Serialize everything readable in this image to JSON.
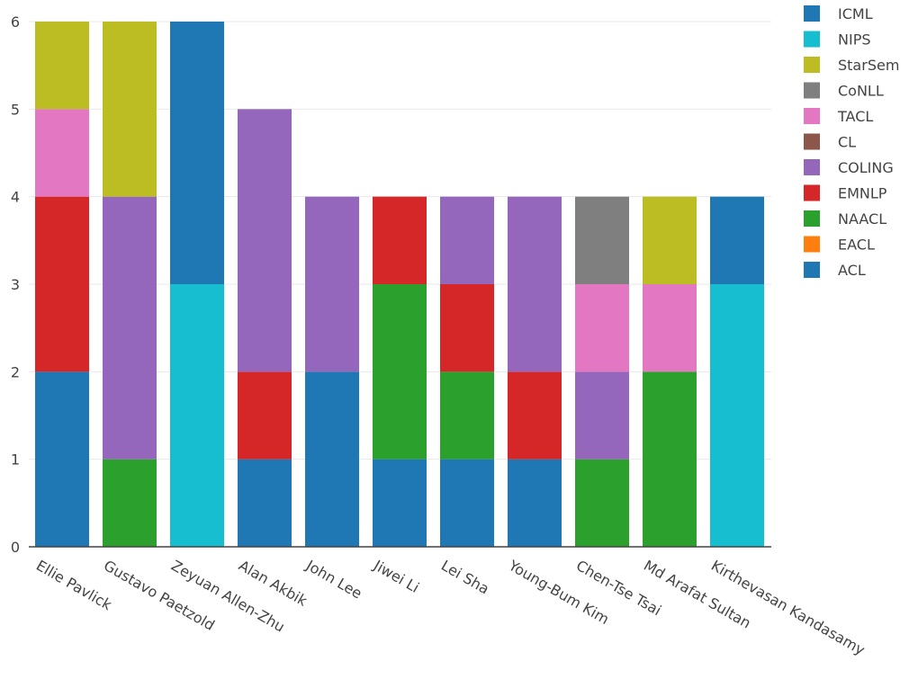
{
  "chart_data": {
    "type": "bar",
    "stacked": true,
    "title": "",
    "xlabel": "",
    "ylabel": "",
    "ylim": [
      0,
      6
    ],
    "yticks": [
      "0",
      "1",
      "2",
      "3",
      "4",
      "5",
      "6"
    ],
    "grid": true,
    "legend_position": "right",
    "categories": [
      "Ellie Pavlick",
      "Gustavo Paetzold",
      "Zeyuan Allen-Zhu",
      "Alan Akbik",
      "John Lee",
      "Jiwei Li",
      "Lei Sha",
      "Young-Bum Kim",
      "Chen-Tse Tsai",
      "Md Arafat Sultan",
      "Kirthevasan Kandasamy"
    ],
    "series": [
      {
        "name": "ACL",
        "color": "#1f77b4",
        "values": [
          2,
          0,
          0,
          1,
          2,
          1,
          1,
          1,
          0,
          0,
          0
        ]
      },
      {
        "name": "EACL",
        "color": "#ff7f0e",
        "values": [
          0,
          0,
          0,
          0,
          0,
          0,
          0,
          0,
          0,
          0,
          0
        ]
      },
      {
        "name": "NAACL",
        "color": "#2ca02c",
        "values": [
          0,
          1,
          0,
          0,
          0,
          2,
          1,
          0,
          1,
          2,
          0
        ]
      },
      {
        "name": "EMNLP",
        "color": "#d62728",
        "values": [
          2,
          0,
          0,
          1,
          0,
          1,
          1,
          1,
          0,
          0,
          0
        ]
      },
      {
        "name": "COLING",
        "color": "#9467bd",
        "values": [
          0,
          3,
          0,
          3,
          2,
          0,
          1,
          2,
          1,
          0,
          0
        ]
      },
      {
        "name": "CL",
        "color": "#8c564b",
        "values": [
          0,
          0,
          0,
          0,
          0,
          0,
          0,
          0,
          0,
          0,
          0
        ]
      },
      {
        "name": "TACL",
        "color": "#e377c2",
        "values": [
          1,
          0,
          0,
          0,
          0,
          0,
          0,
          0,
          1,
          1,
          0
        ]
      },
      {
        "name": "CoNLL",
        "color": "#7f7f7f",
        "values": [
          0,
          0,
          0,
          0,
          0,
          0,
          0,
          0,
          1,
          0,
          0
        ]
      },
      {
        "name": "StarSem",
        "color": "#bcbd22",
        "values": [
          1,
          2,
          0,
          0,
          0,
          0,
          0,
          0,
          0,
          1,
          0
        ]
      },
      {
        "name": "NIPS",
        "color": "#17becf",
        "values": [
          0,
          0,
          3,
          0,
          0,
          0,
          0,
          0,
          0,
          0,
          3
        ]
      },
      {
        "name": "ICML",
        "color": "#1f77b4",
        "values": [
          0,
          0,
          3,
          0,
          0,
          0,
          0,
          0,
          0,
          0,
          1
        ]
      }
    ]
  }
}
